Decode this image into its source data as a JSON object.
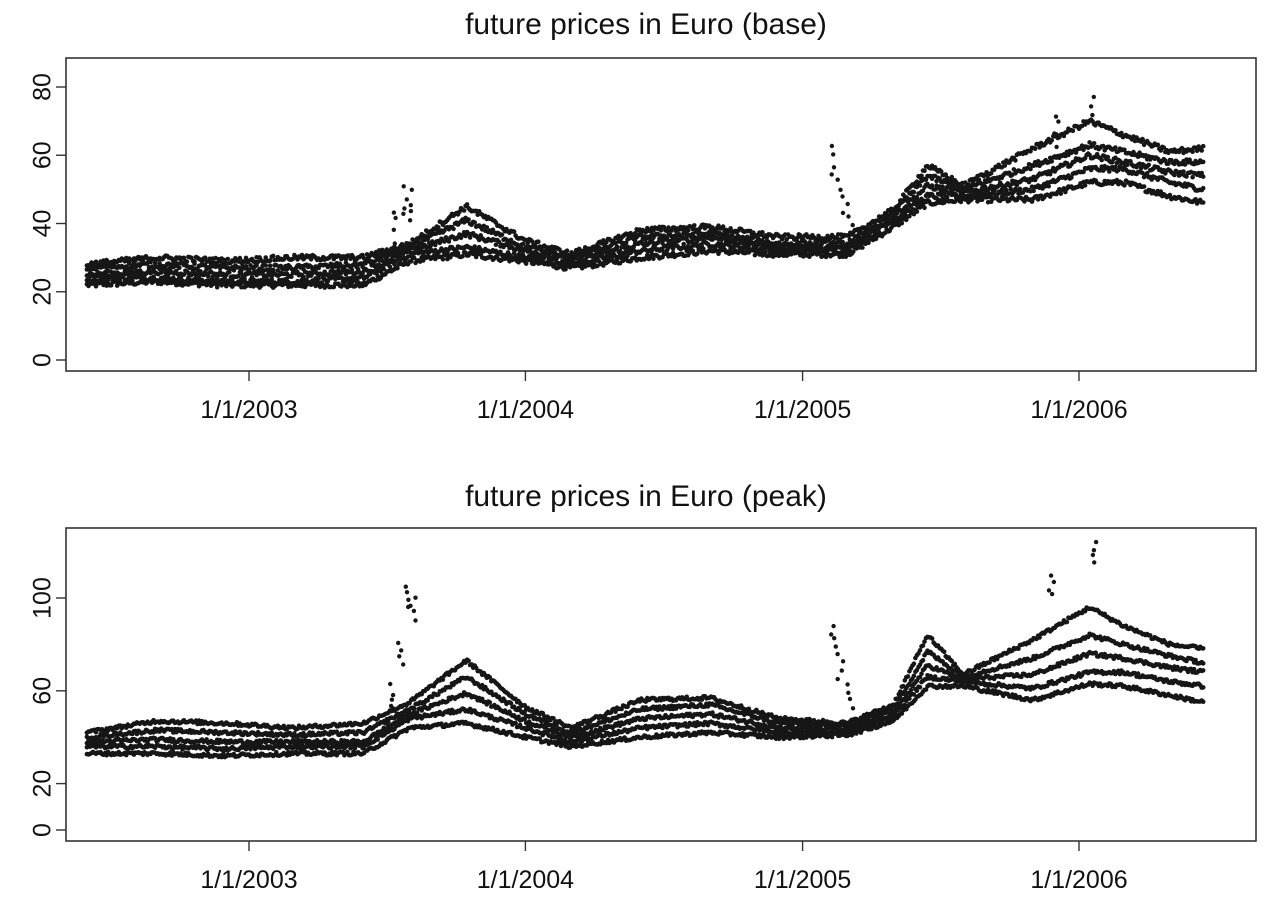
{
  "chart_data": [
    {
      "type": "scatter",
      "title": "future prices in Euro (base)",
      "xlabel": "",
      "ylabel": "",
      "x_range": [
        "2002-05-01",
        "2006-07-01"
      ],
      "ylim": [
        0,
        88
      ],
      "x_ticks": [
        "1/1/2003",
        "1/1/2004",
        "1/1/2005",
        "1/1/2006"
      ],
      "y_ticks": [
        0,
        20,
        40,
        60,
        80
      ],
      "grid": false,
      "series": [
        {
          "x": [
            "2002-06-01",
            "2002-09-01",
            "2002-12-01",
            "2003-03-01",
            "2003-06-01",
            "2003-08-01",
            "2003-10-15",
            "2004-01-01",
            "2004-03-01",
            "2004-06-01",
            "2004-09-01",
            "2004-12-01",
            "2005-03-01",
            "2005-05-01",
            "2005-06-15",
            "2005-08-01",
            "2005-11-01",
            "2006-01-15",
            "2006-03-01",
            "2006-05-01",
            "2006-06-15"
          ],
          "y": [
            22,
            23,
            22,
            22,
            22,
            29,
            31,
            29,
            27,
            30,
            32,
            31,
            31,
            39,
            46,
            47,
            47,
            52,
            52,
            48,
            46
          ]
        },
        {
          "x": [
            "2002-06-01",
            "2002-09-01",
            "2002-12-01",
            "2003-03-01",
            "2003-06-01",
            "2003-08-01",
            "2003-10-15",
            "2004-01-01",
            "2004-03-01",
            "2004-06-01",
            "2004-09-01",
            "2004-12-01",
            "2005-03-01",
            "2005-05-01",
            "2005-06-15",
            "2005-08-01",
            "2005-11-01",
            "2006-01-15",
            "2006-03-01",
            "2006-05-01",
            "2006-06-15"
          ],
          "y": [
            24,
            24,
            23,
            23,
            24,
            31,
            33,
            30,
            28,
            32,
            34,
            32,
            32,
            41,
            48,
            48,
            50,
            56,
            56,
            52,
            50
          ]
        },
        {
          "x": [
            "2002-06-01",
            "2002-09-01",
            "2002-12-01",
            "2003-03-01",
            "2003-06-01",
            "2003-08-01",
            "2003-10-15",
            "2004-01-01",
            "2004-03-01",
            "2004-06-01",
            "2004-09-01",
            "2004-12-01",
            "2005-03-01",
            "2005-05-01",
            "2005-06-15",
            "2005-08-01",
            "2005-11-01",
            "2006-01-15",
            "2006-03-01",
            "2006-05-01",
            "2006-06-15"
          ],
          "y": [
            25,
            26,
            25,
            25,
            26,
            32,
            37,
            32,
            29,
            34,
            36,
            33,
            33,
            42,
            51,
            49,
            53,
            60,
            58,
            55,
            54
          ]
        },
        {
          "x": [
            "2002-06-01",
            "2002-09-01",
            "2002-12-01",
            "2003-03-01",
            "2003-06-01",
            "2003-08-01",
            "2003-10-15",
            "2004-01-01",
            "2004-03-01",
            "2004-06-01",
            "2004-09-01",
            "2004-12-01",
            "2005-03-01",
            "2005-05-01",
            "2005-06-15",
            "2005-08-01",
            "2005-11-01",
            "2006-01-15",
            "2006-03-01",
            "2006-05-01",
            "2006-06-15"
          ],
          "y": [
            27,
            28,
            27,
            27,
            28,
            33,
            41,
            33,
            30,
            36,
            37,
            34,
            34,
            43,
            54,
            50,
            57,
            63,
            61,
            58,
            58
          ]
        },
        {
          "x": [
            "2002-06-01",
            "2002-09-01",
            "2002-12-01",
            "2003-03-01",
            "2003-06-01",
            "2003-08-01",
            "2003-10-15",
            "2004-01-01",
            "2004-03-01",
            "2004-06-01",
            "2004-09-01",
            "2004-12-01",
            "2005-03-01",
            "2005-05-01",
            "2005-06-15",
            "2005-08-01",
            "2005-11-01",
            "2006-01-15",
            "2006-03-01",
            "2006-05-01",
            "2006-06-15"
          ],
          "y": [
            28,
            30,
            29,
            30,
            30,
            34,
            45,
            35,
            31,
            38,
            39,
            36,
            36,
            44,
            57,
            51,
            62,
            70,
            66,
            61,
            62
          ]
        },
        {
          "x": [
            "2003-07-15",
            "2003-07-25",
            "2003-08-05",
            "2005-02-10",
            "2005-02-20",
            "2005-03-05",
            "2005-12-01",
            "2006-01-20"
          ],
          "y": [
            44,
            51,
            49,
            63,
            53,
            45,
            72,
            78
          ]
        }
      ]
    },
    {
      "type": "scatter",
      "title": "future prices in Euro (peak)",
      "xlabel": "",
      "ylabel": "",
      "x_range": [
        "2002-05-01",
        "2006-07-01"
      ],
      "ylim": [
        0,
        135
      ],
      "x_ticks": [
        "1/1/2003",
        "1/1/2004",
        "1/1/2005",
        "1/1/2006"
      ],
      "y_ticks": [
        0,
        20,
        60,
        100
      ],
      "grid": false,
      "series": [
        {
          "x": [
            "2002-06-01",
            "2002-09-01",
            "2002-12-01",
            "2003-03-01",
            "2003-06-01",
            "2003-08-01",
            "2003-10-15",
            "2004-01-01",
            "2004-03-01",
            "2004-06-01",
            "2004-09-01",
            "2004-12-01",
            "2005-03-01",
            "2005-05-01",
            "2005-06-15",
            "2005-08-01",
            "2005-11-01",
            "2006-01-15",
            "2006-03-01",
            "2006-05-01",
            "2006-06-15"
          ],
          "y": [
            33,
            33,
            32,
            33,
            33,
            44,
            46,
            40,
            36,
            40,
            42,
            40,
            41,
            47,
            62,
            62,
            56,
            63,
            62,
            58,
            55
          ]
        },
        {
          "x": [
            "2002-06-01",
            "2002-09-01",
            "2002-12-01",
            "2003-03-01",
            "2003-06-01",
            "2003-08-01",
            "2003-10-15",
            "2004-01-01",
            "2004-03-01",
            "2004-06-01",
            "2004-09-01",
            "2004-12-01",
            "2005-03-01",
            "2005-05-01",
            "2005-06-15",
            "2005-08-01",
            "2005-11-01",
            "2006-01-15",
            "2006-03-01",
            "2006-05-01",
            "2006-06-15"
          ],
          "y": [
            36,
            36,
            35,
            36,
            36,
            48,
            52,
            44,
            38,
            44,
            46,
            42,
            42,
            49,
            66,
            64,
            61,
            68,
            68,
            64,
            62
          ]
        },
        {
          "x": [
            "2002-06-01",
            "2002-09-01",
            "2002-12-01",
            "2003-03-01",
            "2003-06-01",
            "2003-08-01",
            "2003-10-15",
            "2004-01-01",
            "2004-03-01",
            "2004-06-01",
            "2004-09-01",
            "2004-12-01",
            "2005-03-01",
            "2005-05-01",
            "2005-06-15",
            "2005-08-01",
            "2005-11-01",
            "2006-01-15",
            "2006-03-01",
            "2006-05-01",
            "2006-06-15"
          ],
          "y": [
            38,
            39,
            38,
            38,
            38,
            50,
            59,
            47,
            40,
            48,
            50,
            44,
            43,
            50,
            71,
            65,
            67,
            76,
            74,
            70,
            68
          ]
        },
        {
          "x": [
            "2002-06-01",
            "2002-09-01",
            "2002-12-01",
            "2003-03-01",
            "2003-06-01",
            "2003-08-01",
            "2003-10-15",
            "2004-01-01",
            "2004-03-01",
            "2004-06-01",
            "2004-09-01",
            "2004-12-01",
            "2005-03-01",
            "2005-05-01",
            "2005-06-15",
            "2005-08-01",
            "2005-11-01",
            "2006-01-15",
            "2006-03-01",
            "2006-05-01",
            "2006-06-15"
          ],
          "y": [
            40,
            43,
            42,
            41,
            42,
            52,
            66,
            50,
            42,
            52,
            54,
            46,
            45,
            52,
            77,
            66,
            74,
            84,
            80,
            75,
            72
          ]
        },
        {
          "x": [
            "2002-06-01",
            "2002-09-01",
            "2002-12-01",
            "2003-03-01",
            "2003-06-01",
            "2003-08-01",
            "2003-10-15",
            "2004-01-01",
            "2004-03-01",
            "2004-06-01",
            "2004-09-01",
            "2004-12-01",
            "2005-03-01",
            "2005-05-01",
            "2005-06-15",
            "2005-08-01",
            "2005-11-01",
            "2006-01-15",
            "2006-03-01",
            "2006-05-01",
            "2006-06-15"
          ],
          "y": [
            42,
            47,
            46,
            44,
            46,
            55,
            73,
            53,
            44,
            56,
            57,
            48,
            46,
            54,
            84,
            67,
            82,
            96,
            88,
            80,
            78
          ]
        },
        {
          "x": [
            "2003-07-10",
            "2003-07-20",
            "2003-07-28",
            "2003-08-05",
            "2005-02-10",
            "2005-02-20",
            "2005-03-05",
            "2005-11-25",
            "2006-01-20"
          ],
          "y": [
            62,
            80,
            105,
            100,
            88,
            75,
            62,
            110,
            124
          ]
        }
      ]
    }
  ]
}
